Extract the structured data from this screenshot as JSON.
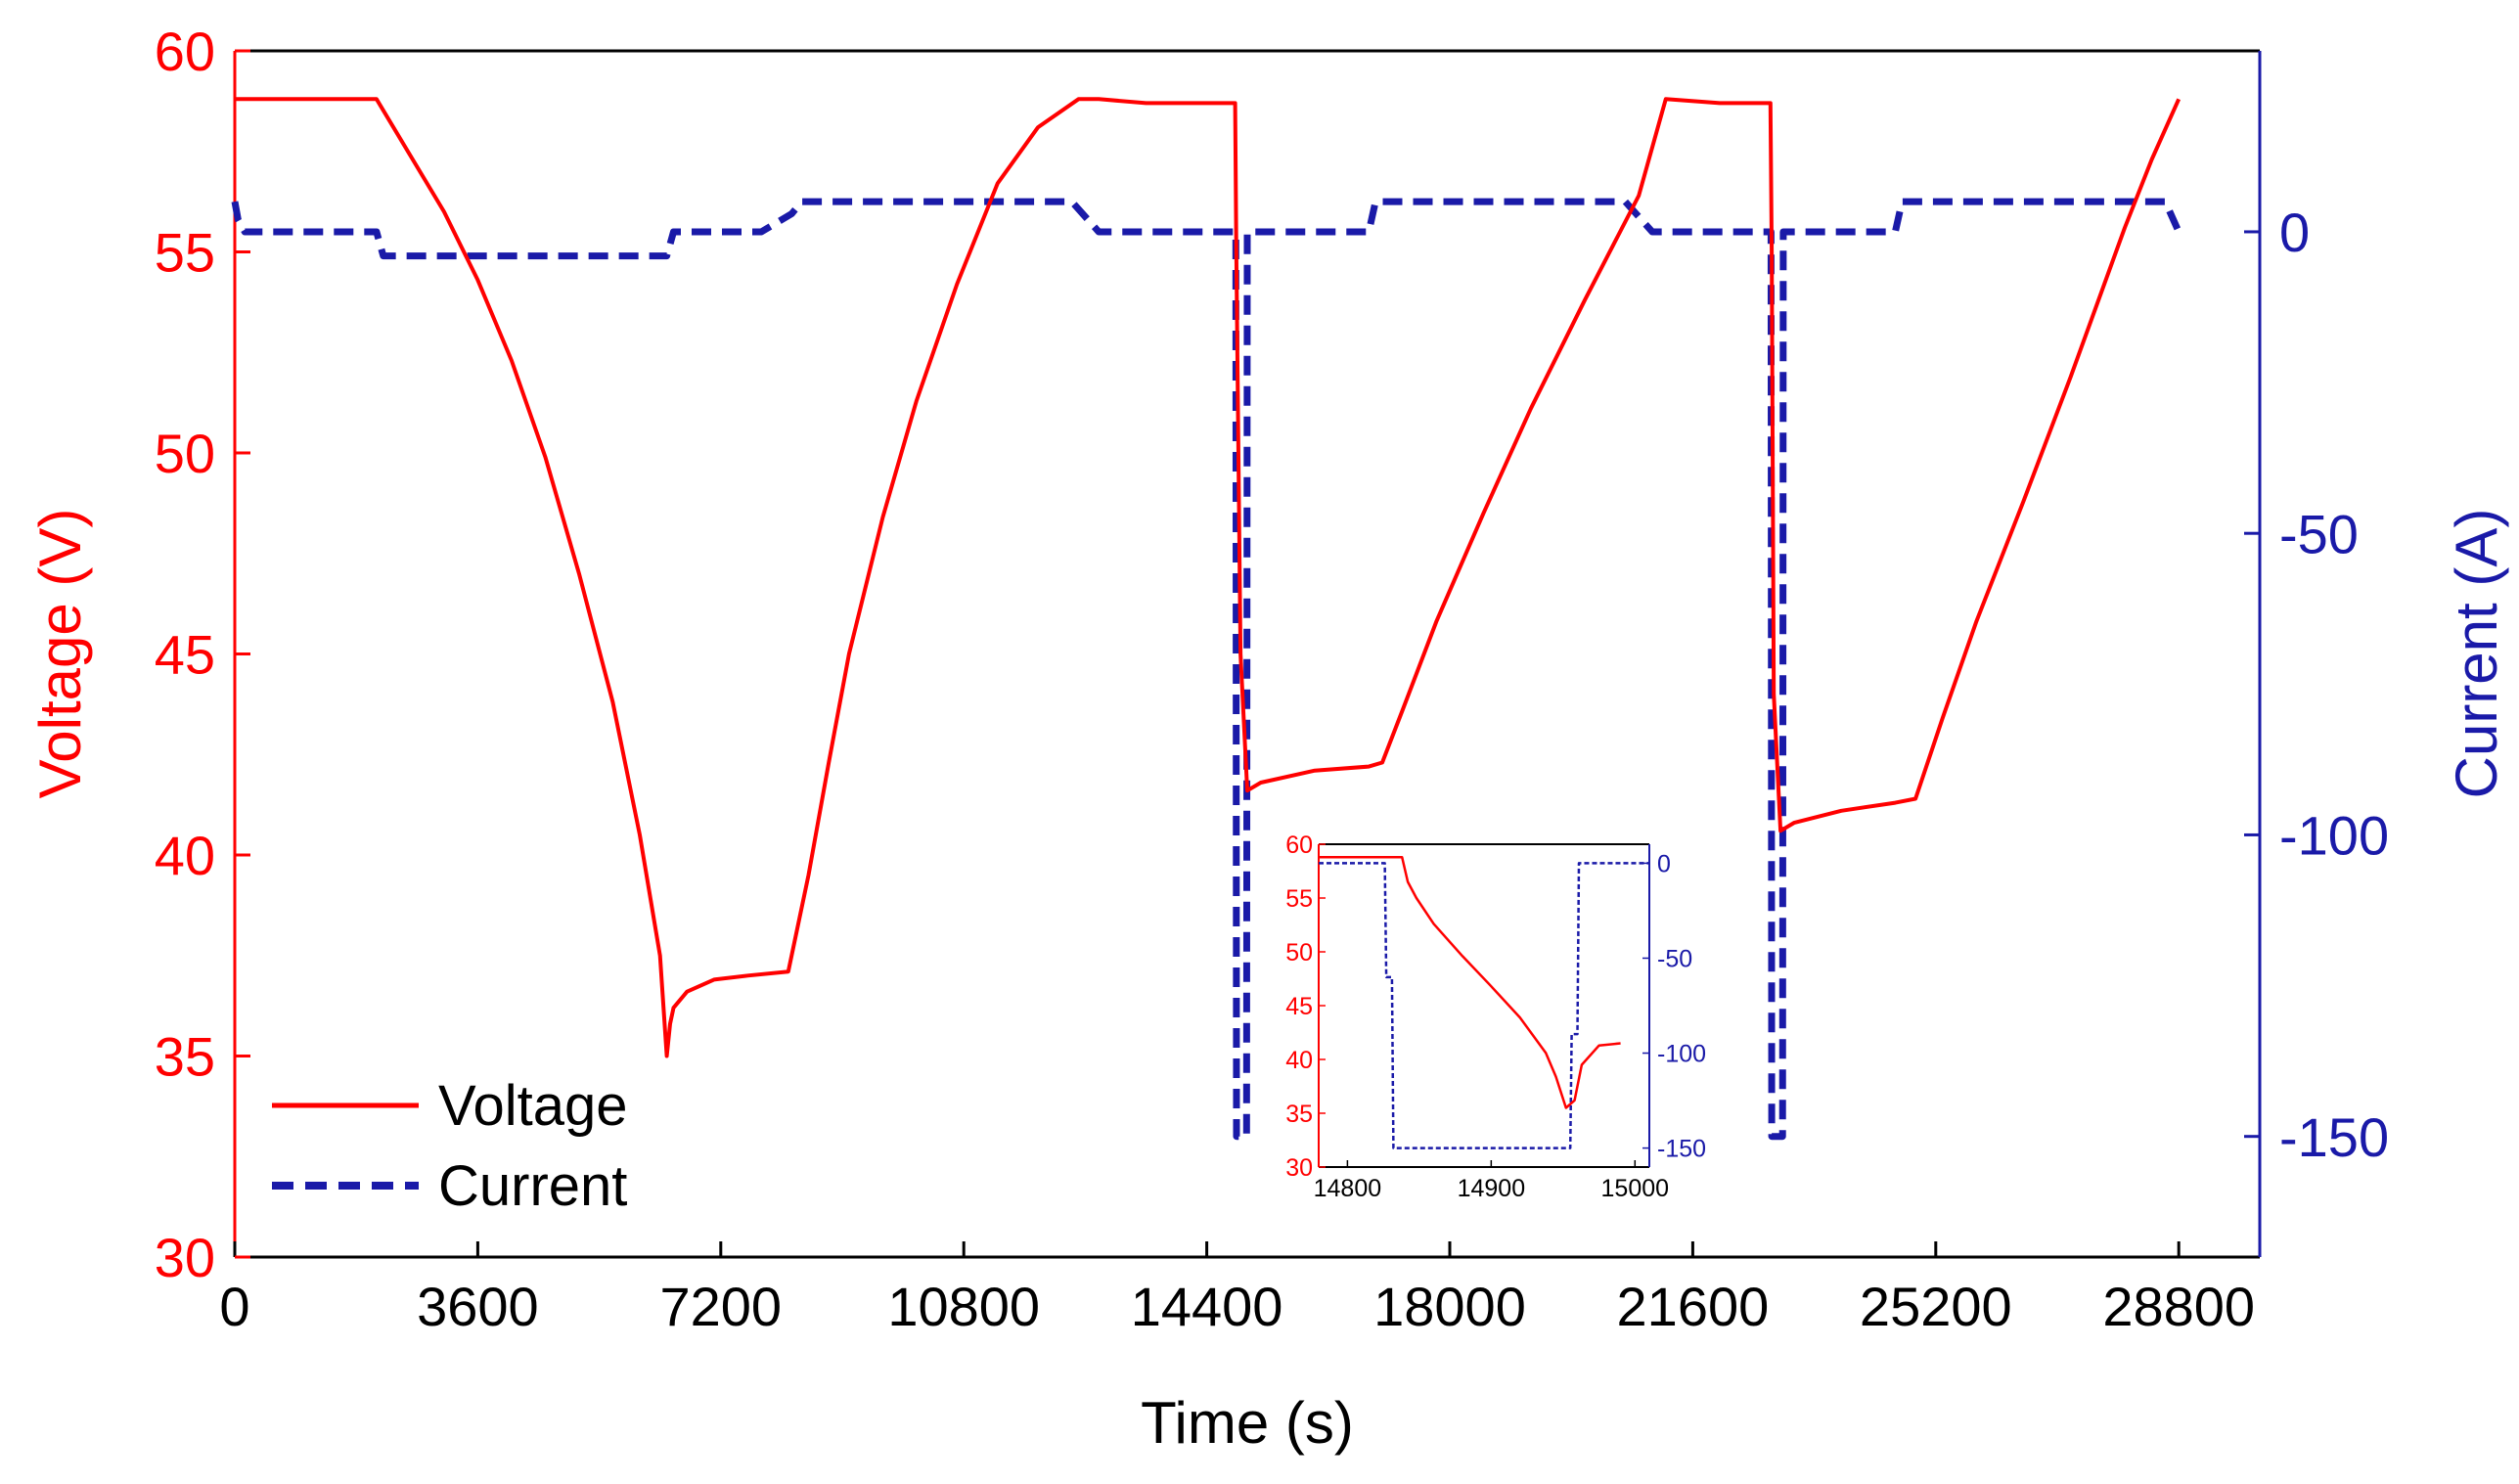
{
  "chart_data": [
    {
      "type": "line",
      "name": "main",
      "xlabel": "Time (s)",
      "ylabel_left": "Voltage (V)",
      "ylabel_right": "Current (A)",
      "xlim": [
        0,
        30000
      ],
      "ylim_left": [
        30,
        60
      ],
      "ylim_right": [
        -170,
        30
      ],
      "xticks": [
        0,
        3600,
        7200,
        10800,
        14400,
        18000,
        21600,
        25200,
        28800
      ],
      "yticks_left": [
        30,
        35,
        40,
        45,
        50,
        55,
        60
      ],
      "yticks_right": [
        -150,
        -100,
        -50,
        0
      ],
      "legend": {
        "position": "bottom-left",
        "entries": [
          "Voltage",
          "Current"
        ]
      },
      "series": [
        {
          "name": "Voltage",
          "axis": "left",
          "color": "#ff0000",
          "style": "solid",
          "x": [
            0,
            2100,
            2600,
            3100,
            3600,
            4100,
            4600,
            5100,
            5600,
            6000,
            6300,
            6400,
            6450,
            6500,
            6700,
            7100,
            7600,
            8200,
            8500,
            8800,
            9100,
            9600,
            10100,
            10700,
            11300,
            11900,
            12500,
            12800,
            13500,
            14820,
            14838,
            14900,
            15000,
            15200,
            16000,
            16800,
            17000,
            17300,
            17800,
            18500,
            19200,
            20000,
            20800,
            21200,
            22000,
            22750,
            22770,
            22800,
            22900,
            23100,
            23800,
            24600,
            24900,
            25300,
            25800,
            26500,
            27200,
            28000,
            28400,
            28800
          ],
          "values": [
            58.8,
            58.8,
            57.4,
            56.0,
            54.3,
            52.3,
            49.9,
            47.0,
            43.8,
            40.5,
            37.5,
            35.0,
            35.8,
            36.2,
            36.6,
            36.9,
            37.0,
            37.1,
            39.5,
            42.3,
            45.0,
            48.4,
            51.3,
            54.2,
            56.7,
            58.1,
            58.8,
            58.8,
            58.7,
            58.7,
            55.0,
            45.0,
            41.6,
            41.8,
            42.1,
            42.2,
            42.3,
            43.6,
            45.8,
            48.5,
            51.1,
            53.8,
            56.4,
            58.8,
            58.7,
            58.7,
            55.0,
            44.0,
            40.6,
            40.8,
            41.1,
            41.3,
            41.4,
            43.4,
            45.8,
            48.8,
            51.9,
            55.6,
            57.3,
            58.8
          ]
        },
        {
          "name": "Current",
          "axis": "right",
          "color": "#1a1aa8",
          "style": "dashed",
          "x": [
            0,
            50,
            150,
            2100,
            2200,
            6400,
            6500,
            7800,
            8250,
            8400,
            12400,
            12800,
            14830,
            14840,
            14990,
            15000,
            16800,
            16900,
            20600,
            21000,
            22760,
            22770,
            22930,
            22940,
            24600,
            24700,
            28600,
            28800
          ],
          "values": [
            5,
            2,
            0,
            0,
            -4,
            -4,
            0,
            0,
            3,
            5,
            5,
            0,
            0,
            -150,
            -150,
            0,
            0,
            5,
            5,
            0,
            0,
            -150,
            -150,
            0,
            0,
            5,
            5,
            0
          ]
        }
      ]
    },
    {
      "type": "line",
      "name": "inset",
      "xlim": [
        14780,
        15010
      ],
      "ylim_left": [
        30,
        60
      ],
      "ylim_right": [
        -160,
        10
      ],
      "xticks": [
        14800,
        14900,
        15000
      ],
      "yticks_left": [
        30,
        35,
        40,
        45,
        50,
        55,
        60
      ],
      "yticks_right": [
        -150,
        -100,
        -50,
        0
      ],
      "series": [
        {
          "name": "Voltage",
          "axis": "left",
          "color": "#ff0000",
          "style": "solid",
          "x": [
            14780,
            14838,
            14842,
            14848,
            14860,
            14880,
            14900,
            14920,
            14938,
            14945,
            14952,
            14958,
            14963,
            14975,
            14990
          ],
          "values": [
            58.8,
            58.8,
            56.5,
            55.0,
            52.6,
            49.6,
            46.8,
            43.9,
            40.6,
            38.4,
            35.5,
            36.2,
            39.5,
            41.3,
            41.5
          ]
        },
        {
          "name": "Current",
          "axis": "right",
          "color": "#1a1aa8",
          "style": "dashed",
          "x": [
            14780,
            14826,
            14827,
            14831,
            14832,
            14955,
            14956,
            14960,
            14961,
            15010
          ],
          "values": [
            0,
            0,
            -60,
            -60,
            -150,
            -150,
            -90,
            -90,
            0,
            0
          ]
        }
      ]
    }
  ]
}
